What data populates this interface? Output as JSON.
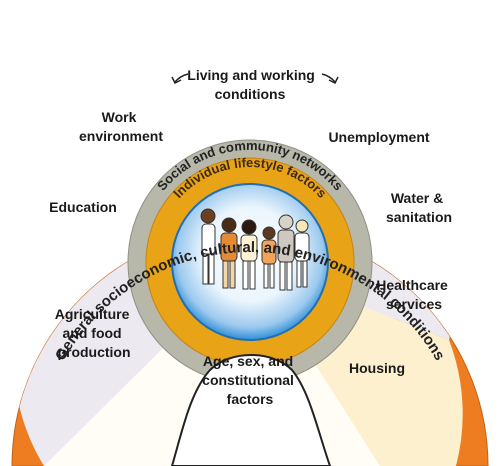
{
  "outer_ring": {
    "text": "General socioeconomic, cultural, and environmental conditions"
  },
  "sectors": {
    "living_working": [
      "Living and working",
      "conditions"
    ],
    "work_environment": [
      "Work",
      "environment"
    ],
    "unemployment": [
      "Unemployment"
    ],
    "education": [
      "Education"
    ],
    "water_sanitation": [
      "Water &",
      "sanitation"
    ],
    "agriculture": [
      "Agriculture",
      "and food",
      "production"
    ],
    "healthcare": [
      "Healthcare",
      "services"
    ],
    "housing": [
      "Housing"
    ]
  },
  "social_ring": {
    "text": "Social and community networks"
  },
  "lifestyle_ring": {
    "text": "Individual lifestyle factors"
  },
  "core": [
    "Age, sex, and",
    "constitutional",
    "factors"
  ],
  "colors": {
    "outer_orange": "#ee7d22",
    "sector_cream": "#fdf0cf",
    "sector_lavender": "#eceaf0",
    "sector_white": "#fffdf6",
    "social_gray": "#b7b7aa",
    "lifestyle_orange": "#e9a317",
    "globe_blue": "#2f8fd8"
  }
}
